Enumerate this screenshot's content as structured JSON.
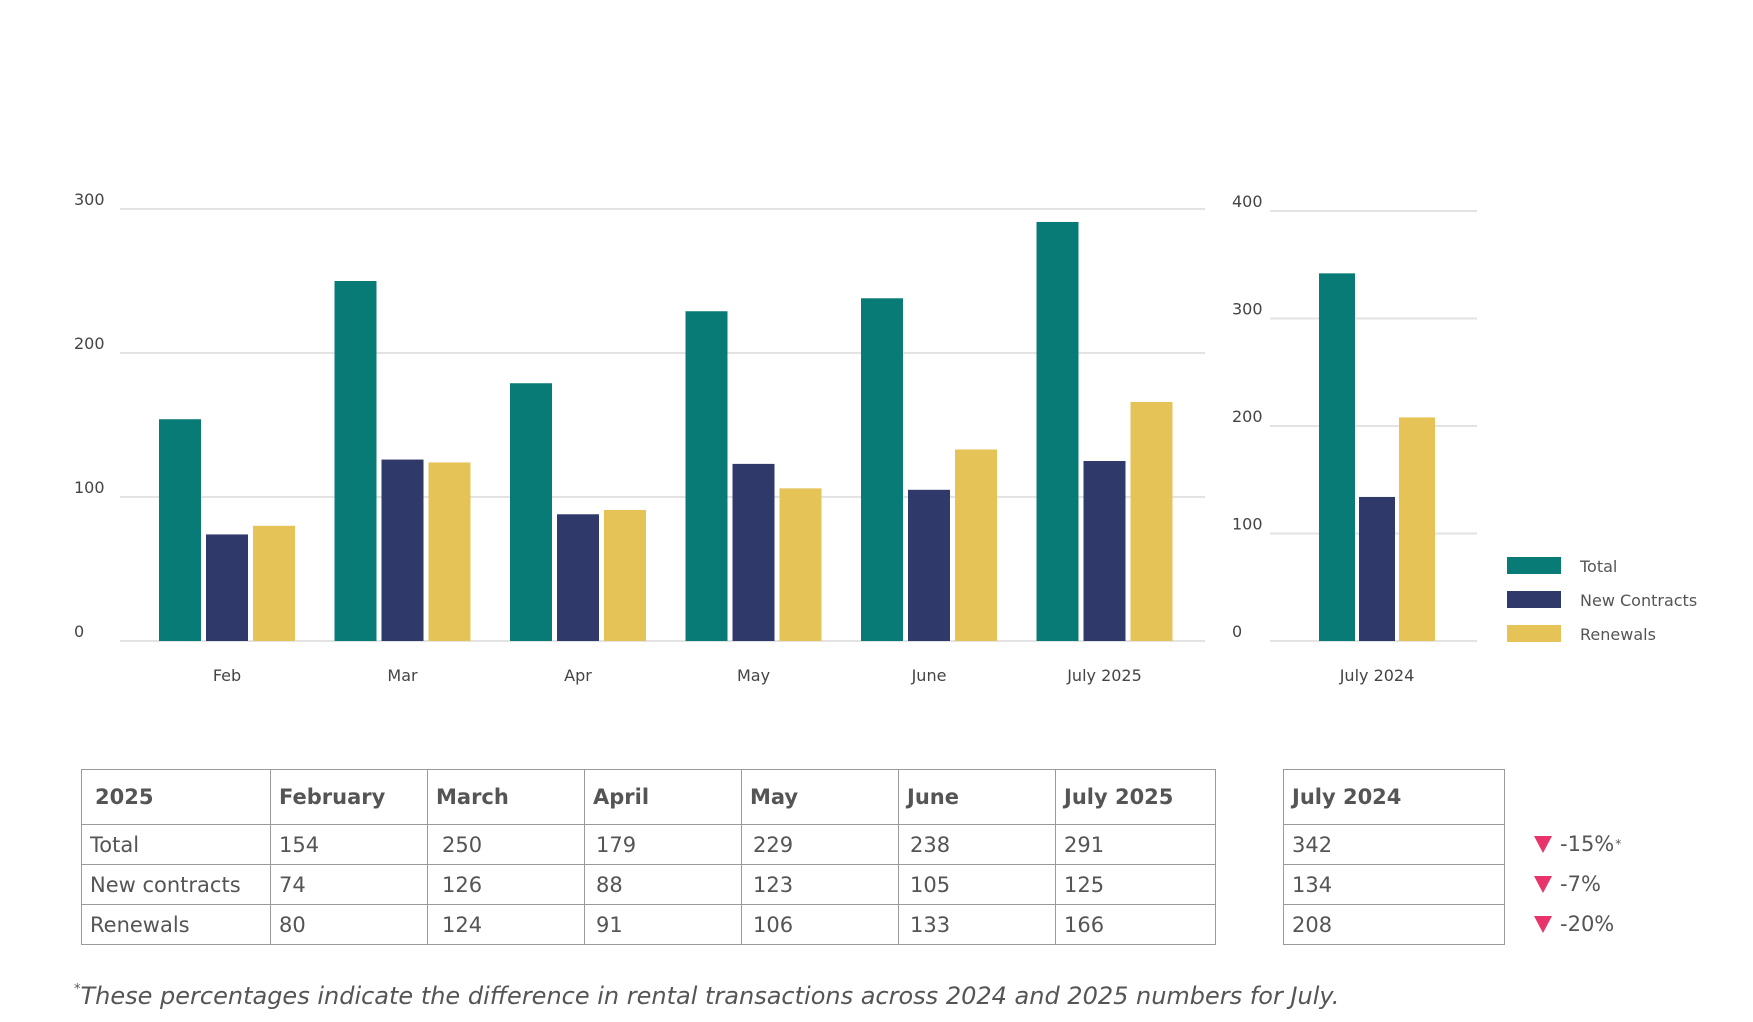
{
  "chart_data": [
    {
      "type": "bar",
      "categories": [
        "Feb",
        "Mar",
        "Apr",
        "May",
        "June",
        "July 2025"
      ],
      "series": [
        {
          "name": "Total",
          "values": [
            154,
            250,
            179,
            229,
            238,
            291
          ]
        },
        {
          "name": "New Contracts",
          "values": [
            74,
            126,
            88,
            123,
            105,
            125
          ]
        },
        {
          "name": "Renewals",
          "values": [
            80,
            124,
            91,
            106,
            133,
            166
          ]
        }
      ],
      "ylim": [
        0,
        300
      ],
      "yticks": [
        "0",
        "100",
        "200",
        "300"
      ],
      "grid": true
    },
    {
      "type": "bar",
      "categories": [
        "July 2024"
      ],
      "series": [
        {
          "name": "Total",
          "values": [
            342
          ]
        },
        {
          "name": "New Contracts",
          "values": [
            134
          ]
        },
        {
          "name": "Renewals",
          "values": [
            208
          ]
        }
      ],
      "ylim": [
        0,
        400
      ],
      "yticks": [
        "0",
        "100",
        "200",
        "300",
        "400"
      ],
      "grid": true
    }
  ],
  "colors": {
    "Total": "#087b77",
    "New Contracts": "#2f3a6b",
    "Renewals": "#e6c357",
    "grid": "#e3e3e3",
    "decrease": "#e8336b"
  },
  "legend": {
    "position": "right",
    "items": [
      {
        "label": "Total",
        "color": "#087b77"
      },
      {
        "label": "New Contracts",
        "color": "#2f3a6b"
      },
      {
        "label": "Renewals",
        "color": "#e6c357"
      }
    ]
  },
  "table_2025": {
    "headers": [
      "2025",
      "February",
      "March",
      "April",
      "May",
      "June",
      "July 2025"
    ],
    "rows": [
      {
        "label": "Total",
        "values": [
          "154",
          "250",
          "179",
          "229",
          "238",
          "291"
        ]
      },
      {
        "label": "New contracts",
        "values": [
          "74",
          "126",
          "88",
          "123",
          "105",
          "125"
        ]
      },
      {
        "label": "Renewals",
        "values": [
          "80",
          "124",
          "91",
          "106",
          "133",
          "166"
        ]
      }
    ]
  },
  "table_2024": {
    "header": "July 2024",
    "values": [
      "342",
      "134",
      "208"
    ]
  },
  "differences": [
    {
      "value": "-15%",
      "mark": "*"
    },
    {
      "value": "-7%",
      "mark": ""
    },
    {
      "value": "-20%",
      "mark": ""
    }
  ],
  "footnote": {
    "mark": "*",
    "text": "These percentages indicate the difference in rental transactions across 2024 and 2025 numbers for July."
  }
}
